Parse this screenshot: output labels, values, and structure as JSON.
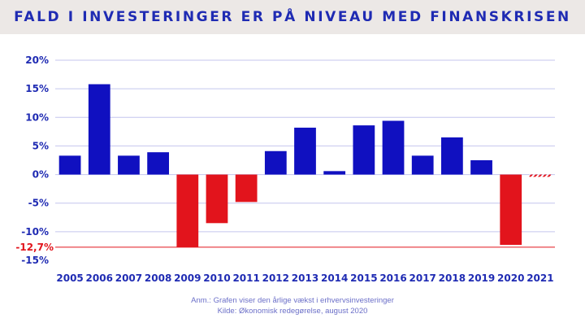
{
  "title": "FALD I INVESTERINGER ER PÅ NIVEAU MED FINANSKRISEN",
  "note_line1": "Anm.: Grafen viser den årlige vækst i erhvervsinvesteringer",
  "note_line2": "Kilde: Økonomisk redegørelse, august 2020",
  "colors": {
    "positive": "#1010c0",
    "negative": "#e2141c",
    "axis_text": "#1f2bb3",
    "grid": "#c4c6ee",
    "reference": "#e2141c",
    "title_band": "#ece8e6"
  },
  "chart_data": {
    "type": "bar",
    "categories": [
      "2005",
      "2006",
      "2007",
      "2008",
      "2009",
      "2010",
      "2011",
      "2012",
      "2013",
      "2014",
      "2015",
      "2016",
      "2017",
      "2018",
      "2019",
      "2020",
      "2021"
    ],
    "values": [
      3.3,
      15.8,
      3.3,
      3.9,
      -12.7,
      -8.5,
      -4.8,
      4.1,
      8.2,
      0.6,
      8.6,
      9.4,
      3.3,
      6.5,
      2.5,
      -12.3,
      -0.4
    ],
    "forecast_last": true,
    "ylim": [
      -15,
      20
    ],
    "yticks": [
      -15,
      -10,
      -5,
      0,
      5,
      10,
      15,
      20
    ],
    "ytick_labels": [
      "-15%",
      "-10%",
      "-5%",
      "0%",
      "5%",
      "10%",
      "15%",
      "20%"
    ],
    "reference_line": {
      "value": -12.7,
      "label": "-12,7%"
    },
    "grid": true,
    "xlabel": "",
    "ylabel": ""
  }
}
